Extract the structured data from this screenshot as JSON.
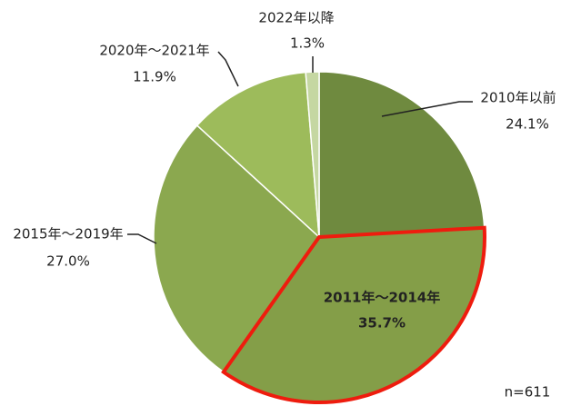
{
  "chart_data": {
    "type": "pie",
    "categories": [
      "2010年以前",
      "2011年～2014年",
      "2015年～2019年",
      "2020年～2021年",
      "2022年以降"
    ],
    "values": [
      24.1,
      35.7,
      27.0,
      11.9,
      1.3
    ],
    "value_labels": [
      "24.1%",
      "35.7%",
      "27.0%",
      "11.9%",
      "1.3%"
    ],
    "colors": [
      "#6f8a3f",
      "#849e48",
      "#8ba84f",
      "#9dbb5b",
      "#c5d7a2"
    ],
    "highlight": {
      "index": 1,
      "color": "#ee1c0e"
    },
    "note": "n=611"
  }
}
